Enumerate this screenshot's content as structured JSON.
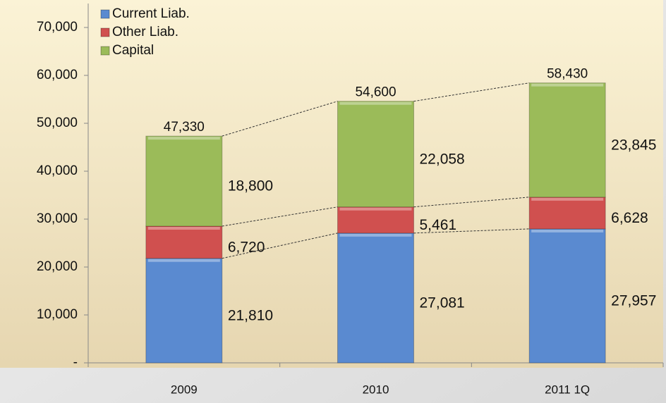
{
  "chart_data": {
    "type": "stacked_bar",
    "categories": [
      "2009",
      "2010",
      "2011 1Q"
    ],
    "series": [
      {
        "name": "Current Liab.",
        "color": "#5a8ad0",
        "values": [
          21810,
          27081,
          27957
        ],
        "value_labels": [
          "21,810",
          "27,081",
          "27,957"
        ]
      },
      {
        "name": "Other Liab.",
        "color": "#d0504f",
        "values": [
          6720,
          5461,
          6628
        ],
        "value_labels": [
          "6,720",
          "5,461",
          "6,628"
        ]
      },
      {
        "name": "Capital",
        "color": "#9bbb59",
        "values": [
          18800,
          22058,
          23845
        ],
        "value_labels": [
          "18,800",
          "22,058",
          "23,845"
        ]
      }
    ],
    "totals": [
      47330,
      54600,
      58430
    ],
    "total_labels": [
      "47,330",
      "54,600",
      "58,430"
    ],
    "ylim": [
      0,
      75000
    ],
    "yticks": [
      {
        "value": 0,
        "label": "-"
      },
      {
        "value": 10000,
        "label": "10,000"
      },
      {
        "value": 20000,
        "label": "20,000"
      },
      {
        "value": 30000,
        "label": "30,000"
      },
      {
        "value": 40000,
        "label": "40,000"
      },
      {
        "value": 50000,
        "label": "50,000"
      },
      {
        "value": 60000,
        "label": "60,000"
      },
      {
        "value": 70000,
        "label": "70,000"
      }
    ],
    "legend": "top-left"
  }
}
